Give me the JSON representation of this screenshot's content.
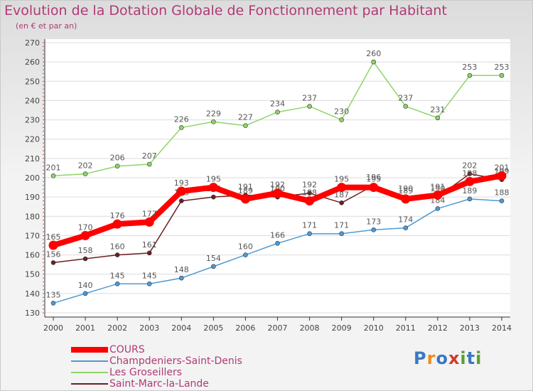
{
  "title": "Evolution de la Dotation Globale de Fonctionnement par Habitant",
  "subtitle": "(en € et par an)",
  "logo": {
    "text": "Proxiti",
    "colors": [
      "#3a78c2",
      "#f08a1a",
      "#3a78c2",
      "#d23a2a",
      "#5aa02c",
      "#3a78c2",
      "#5aa02c"
    ]
  },
  "chart_data": {
    "type": "line",
    "title": "Evolution de la Dotation Globale de Fonctionnement par Habitant",
    "subtitle": "(en € et par an)",
    "x": [
      2000,
      2001,
      2002,
      2003,
      2004,
      2005,
      2006,
      2007,
      2008,
      2009,
      2010,
      2011,
      2012,
      2013,
      2014
    ],
    "ylim": [
      130,
      270
    ],
    "yticks": [
      130,
      140,
      150,
      160,
      170,
      180,
      190,
      200,
      210,
      220,
      230,
      240,
      250,
      260,
      270
    ],
    "grid": "horizontal",
    "legend_position": "bottom",
    "series": [
      {
        "name": "COURS",
        "color": "#ff0000",
        "values": [
          165,
          170,
          176,
          177,
          193,
          195,
          189,
          192,
          188,
          195,
          195,
          189,
          191,
          198,
          201
        ],
        "labels": [
          "165",
          "170",
          "176",
          "177",
          "193",
          "195",
          "189",
          "192",
          "188",
          "195",
          "195",
          "189",
          "191",
          "198",
          "201"
        ]
      },
      {
        "name": "Champdeniers-Saint-Denis",
        "color": "#4f9ad3",
        "values": [
          135,
          140,
          145,
          145,
          148,
          154,
          160,
          166,
          171,
          171,
          173,
          174,
          184,
          189,
          188
        ],
        "labels": [
          "135",
          "140",
          "145",
          "145",
          "148",
          "154",
          "160",
          "166",
          "171",
          "171",
          "173",
          "174",
          "184",
          "189",
          "188"
        ]
      },
      {
        "name": "Les Groseillers",
        "color": "#8fd46a",
        "values": [
          201,
          202,
          206,
          207,
          226,
          229,
          227,
          234,
          237,
          230,
          260,
          237,
          231,
          253,
          253
        ],
        "labels": [
          "201",
          "202",
          "206",
          "207",
          "226",
          "229",
          "227",
          "234",
          "237",
          "230",
          "260",
          "237",
          "231",
          "253",
          "253"
        ]
      },
      {
        "name": "Saint-Marc-la-Lande",
        "color": "#6b1f24",
        "values": [
          156,
          158,
          160,
          161,
          188,
          190,
          191,
          190,
          192,
          187,
          196,
          190,
          190,
          202,
          199
        ],
        "labels": [
          "156",
          "158",
          "160",
          "161",
          "188",
          "190",
          "191",
          "190",
          "192",
          "187",
          "196",
          "190",
          "190",
          "202",
          "199"
        ]
      }
    ]
  }
}
